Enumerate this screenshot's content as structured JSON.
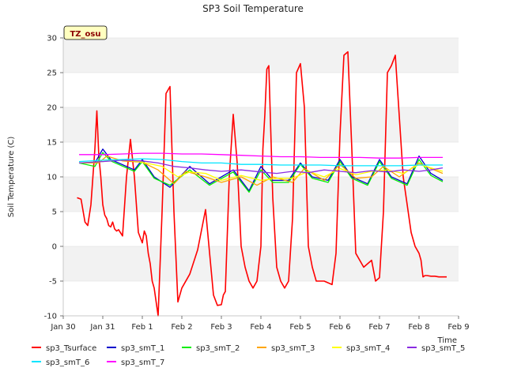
{
  "chart_data": {
    "type": "line",
    "title": "SP3 Soil Temperature",
    "xlabel": "Time",
    "ylabel": "Soil Temperature (C)",
    "badge": "TZ_osu",
    "ylim": [
      -10,
      30
    ],
    "xlim": [
      0,
      10
    ],
    "yticks": [
      -10,
      -5,
      0,
      5,
      10,
      15,
      20,
      25,
      30
    ],
    "xticks": [
      {
        "v": 0,
        "label": "Jan 30"
      },
      {
        "v": 1,
        "label": "Jan 31"
      },
      {
        "v": 2,
        "label": "Feb 1"
      },
      {
        "v": 3,
        "label": "Feb 2"
      },
      {
        "v": 4,
        "label": "Feb 3"
      },
      {
        "v": 5,
        "label": "Feb 4"
      },
      {
        "v": 6,
        "label": "Feb 5"
      },
      {
        "v": 7,
        "label": "Feb 6"
      },
      {
        "v": 8,
        "label": "Feb 7"
      },
      {
        "v": 9,
        "label": "Feb 8"
      },
      {
        "v": 10,
        "label": "Feb 9"
      }
    ],
    "series": [
      {
        "name": "sp3_Tsurface",
        "color": "#ff0000",
        "x": [
          0.35,
          0.45,
          0.55,
          0.62,
          0.7,
          0.8,
          0.85,
          0.9,
          0.95,
          1.0,
          1.05,
          1.1,
          1.15,
          1.2,
          1.25,
          1.3,
          1.35,
          1.4,
          1.5,
          1.6,
          1.7,
          1.8,
          1.9,
          2.0,
          2.05,
          2.1,
          2.15,
          2.2,
          2.25,
          2.3,
          2.4,
          2.5,
          2.6,
          2.7,
          2.8,
          2.9,
          3.0,
          3.2,
          3.4,
          3.6,
          3.8,
          3.9,
          4.0,
          4.05,
          4.1,
          4.2,
          4.3,
          4.4,
          4.5,
          4.6,
          4.7,
          4.8,
          4.9,
          5.0,
          5.05,
          5.1,
          5.15,
          5.2,
          5.3,
          5.4,
          5.5,
          5.6,
          5.7,
          5.8,
          5.9,
          6.0,
          6.1,
          6.2,
          6.3,
          6.4,
          6.6,
          6.8,
          6.9,
          7.0,
          7.1,
          7.2,
          7.3,
          7.4,
          7.6,
          7.8,
          7.9,
          8.0,
          8.1,
          8.2,
          8.3,
          8.4,
          8.6,
          8.8,
          8.9,
          9.0,
          9.05,
          9.1,
          9.15,
          9.2,
          9.3,
          9.4,
          9.5,
          9.6,
          9.7
        ],
        "y": [
          7,
          6.8,
          3.5,
          3,
          6,
          14,
          19.5,
          13,
          10,
          6,
          4.5,
          4,
          3,
          2.8,
          3.5,
          2.5,
          2.2,
          2.4,
          1.5,
          10,
          15.4,
          10,
          2,
          0.5,
          2.2,
          1.5,
          -1,
          -2.5,
          -5,
          -6,
          -10,
          5,
          22,
          23,
          5,
          -8,
          -6,
          -4,
          -0.5,
          5.3,
          -7,
          -8.5,
          -8.4,
          -7,
          -6.5,
          10,
          19,
          12,
          0,
          -3,
          -5,
          -6,
          -5,
          0,
          14,
          19,
          25.5,
          26,
          7,
          -3,
          -5,
          -6,
          -5,
          4,
          25,
          26.3,
          20,
          0,
          -3,
          -5,
          -5,
          -5.5,
          -1,
          16,
          27.5,
          28,
          14,
          -1,
          -3,
          -2,
          -5,
          -4.5,
          5,
          25,
          26,
          27.5,
          10,
          2,
          0,
          -1,
          -2,
          -4.4,
          -4.2,
          -4.2,
          -4.3,
          -4.3,
          -4.4,
          -4.4,
          -4.4
        ]
      },
      {
        "name": "sp3_smT_1",
        "color": "#0000cc",
        "x": [
          0.4,
          0.8,
          1.0,
          1.2,
          1.8,
          2.0,
          2.3,
          2.7,
          3.2,
          3.7,
          4.3,
          4.7,
          5.0,
          5.3,
          5.7,
          6.0,
          6.3,
          6.7,
          7.0,
          7.3,
          7.7,
          8.0,
          8.3,
          8.7,
          9.0,
          9.3,
          9.6
        ],
        "y": [
          12,
          12,
          14,
          12.5,
          11,
          12.5,
          10,
          8.5,
          11.5,
          9,
          11,
          8,
          11.5,
          9.5,
          9.5,
          12,
          10,
          9.5,
          12.5,
          10,
          9,
          12.5,
          10,
          9,
          13,
          10.5,
          9.5
        ]
      },
      {
        "name": "sp3_smT_2",
        "color": "#00ee00",
        "x": [
          0.4,
          0.8,
          1.0,
          1.2,
          1.8,
          2.0,
          2.3,
          2.7,
          3.2,
          3.7,
          4.3,
          4.7,
          5.0,
          5.3,
          5.7,
          6.0,
          6.3,
          6.7,
          7.0,
          7.3,
          7.7,
          8.0,
          8.3,
          8.7,
          9.0,
          9.3,
          9.6
        ],
        "y": [
          12,
          11.5,
          13.5,
          12.3,
          10.8,
          12.2,
          9.8,
          8.8,
          11,
          8.8,
          10.7,
          7.8,
          11,
          9.2,
          9.2,
          11.8,
          9.8,
          9.2,
          12.2,
          9.8,
          8.8,
          12.2,
          9.8,
          8.8,
          12.5,
          10.2,
          9.3
        ]
      },
      {
        "name": "sp3_smT_3",
        "color": "#ffa500",
        "x": [
          0.4,
          0.9,
          1.1,
          1.5,
          2.0,
          2.4,
          2.8,
          3.1,
          3.6,
          4.0,
          4.5,
          4.9,
          5.3,
          5.8,
          6.1,
          6.6,
          7.0,
          7.4,
          7.8,
          8.1,
          8.5,
          9.0,
          9.3,
          9.6
        ],
        "y": [
          12,
          12,
          13,
          12.3,
          12.1,
          11,
          9,
          10.8,
          10,
          9.2,
          10,
          8.8,
          10,
          9.2,
          11.2,
          9.5,
          11.8,
          9.8,
          10,
          11.5,
          10,
          12,
          11.2,
          10.5
        ]
      },
      {
        "name": "sp3_smT_4",
        "color": "#ffff00",
        "x": [
          0.4,
          1.0,
          1.5,
          2.0,
          2.5,
          2.9,
          3.2,
          3.6,
          4.0,
          4.5,
          5.0,
          5.4,
          5.8,
          6.2,
          6.6,
          7.0,
          7.4,
          7.8,
          8.2,
          8.6,
          9.0,
          9.3,
          9.6
        ],
        "y": [
          12,
          12.2,
          12.5,
          12.1,
          11.5,
          10,
          10.7,
          10.5,
          9.5,
          10.2,
          9.5,
          9.8,
          9.8,
          10.8,
          10,
          11.2,
          10.3,
          10.8,
          11,
          10.5,
          11.8,
          11.3,
          10.8
        ]
      },
      {
        "name": "sp3_smT_5",
        "color": "#8a2be2",
        "x": [
          0.4,
          1.0,
          1.5,
          2.0,
          2.4,
          2.8,
          3.2,
          3.6,
          4.0,
          4.5,
          5.0,
          5.4,
          5.8,
          6.2,
          6.6,
          7.0,
          7.4,
          7.8,
          8.2,
          8.6,
          9.0,
          9.3,
          9.6
        ],
        "y": [
          12,
          12.2,
          12.4,
          12.3,
          12,
          11.5,
          11.3,
          11,
          10.8,
          11,
          10.7,
          10.5,
          10.8,
          10.6,
          11,
          10.8,
          10.6,
          10.9,
          10.7,
          11,
          10.8,
          11,
          11.3
        ]
      },
      {
        "name": "sp3_smT_6",
        "color": "#00e5ff",
        "x": [
          0.4,
          1.0,
          1.5,
          2.0,
          2.5,
          3.0,
          3.5,
          4.0,
          4.5,
          5.0,
          5.5,
          6.0,
          6.5,
          7.0,
          7.5,
          8.0,
          8.5,
          9.0,
          9.6
        ],
        "y": [
          12.2,
          12.4,
          12.5,
          12.6,
          12.5,
          12.2,
          12,
          12,
          11.8,
          11.8,
          11.7,
          11.7,
          11.7,
          11.6,
          11.6,
          11.6,
          11.6,
          11.7,
          11.7
        ]
      },
      {
        "name": "sp3_smT_7",
        "color": "#ff00ff",
        "x": [
          0.4,
          1.0,
          1.5,
          2.0,
          2.5,
          3.0,
          3.5,
          4.0,
          4.5,
          5.0,
          5.5,
          6.0,
          6.5,
          7.0,
          7.5,
          8.0,
          8.5,
          9.0,
          9.6
        ],
        "y": [
          13.2,
          13.2,
          13.3,
          13.4,
          13.4,
          13.3,
          13.3,
          13.2,
          13.1,
          13,
          12.9,
          12.9,
          12.8,
          12.8,
          12.8,
          12.7,
          12.7,
          12.8,
          12.8
        ]
      }
    ]
  }
}
